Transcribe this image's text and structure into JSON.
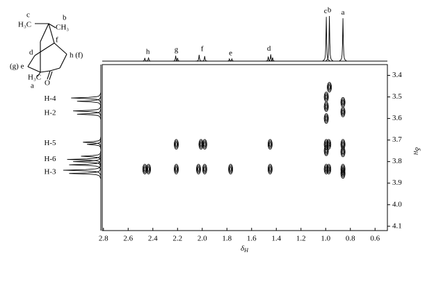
{
  "chart_data": {
    "type": "contour",
    "xlabel_symbol": "δ",
    "xlabel_sub": "H",
    "ylabel_symbol": "δ",
    "ylabel_sub": "H",
    "xlim": [
      2.81,
      0.5
    ],
    "ylim": [
      3.35,
      4.12
    ],
    "xticks": [
      {
        "value": 2.8,
        "label": "2.8"
      },
      {
        "value": 2.6,
        "label": "2.6"
      },
      {
        "value": 2.4,
        "label": "2.4"
      },
      2.2,
      {
        "value": 2.0,
        "label": "2.0"
      },
      1.8,
      1.6,
      1.4,
      1.2,
      {
        "value": 1.0,
        "label": "1.0"
      },
      0.8,
      0.6
    ],
    "yticks": [
      3.4,
      3.5,
      3.6,
      3.7,
      3.8,
      3.9,
      {
        "value": 4.0,
        "label": "4.0"
      },
      4.1
    ],
    "color": "#000000",
    "contours": {
      "x": [
        2.465,
        2.435,
        2.21,
        2.21,
        2.03,
        2.01,
        1.98,
        1.98,
        1.77,
        1.45,
        1.45,
        0.995,
        0.995,
        0.995,
        0.995,
        0.995,
        0.995,
        0.975,
        0.975,
        0.97,
        0.86,
        0.86,
        0.86,
        0.86,
        0.86,
        0.86
      ],
      "y": [
        3.835,
        3.835,
        3.72,
        3.835,
        3.835,
        3.72,
        3.72,
        3.835,
        3.835,
        3.72,
        3.835,
        3.5,
        3.545,
        3.6,
        3.72,
        3.75,
        3.835,
        3.72,
        3.835,
        3.455,
        3.525,
        3.57,
        3.72,
        3.755,
        3.835,
        3.855
      ]
    },
    "top_spectrum": {
      "labels": [
        "h",
        "g",
        "f",
        "e",
        "d",
        "c",
        "b",
        "a"
      ],
      "label_positions": [
        2.44,
        2.21,
        2.0,
        1.77,
        1.46,
        1.0,
        0.97,
        0.86
      ],
      "peaks_x": [
        2.465,
        2.435,
        2.215,
        2.2,
        2.025,
        1.98,
        1.78,
        1.76,
        1.465,
        1.445,
        1.43,
        0.995,
        0.97,
        0.86
      ],
      "peaks_height": [
        0.07,
        0.08,
        0.12,
        0.07,
        0.14,
        0.11,
        0.05,
        0.05,
        0.1,
        0.15,
        0.08,
        0.98,
        1.0,
        0.95
      ]
    },
    "side_projection": {
      "labels": [
        "H-4",
        "H-2",
        "H-5",
        "H-6",
        "H-3"
      ],
      "label_positions": [
        3.51,
        3.575,
        3.715,
        3.79,
        3.85
      ],
      "peaks_y": [
        3.505,
        3.52,
        3.565,
        3.58,
        3.71,
        3.72,
        3.775,
        3.79,
        3.8,
        3.815,
        3.84,
        3.855
      ],
      "peaks_height": [
        0.75,
        0.6,
        0.7,
        0.6,
        0.45,
        0.35,
        0.5,
        0.85,
        0.7,
        0.8,
        0.95,
        0.8
      ]
    },
    "structure_labels": [
      "c",
      "b",
      "H₃C",
      "CH₃",
      "f",
      "d",
      "h (f)",
      "(g) e",
      "H₃C",
      "a",
      "O"
    ]
  }
}
